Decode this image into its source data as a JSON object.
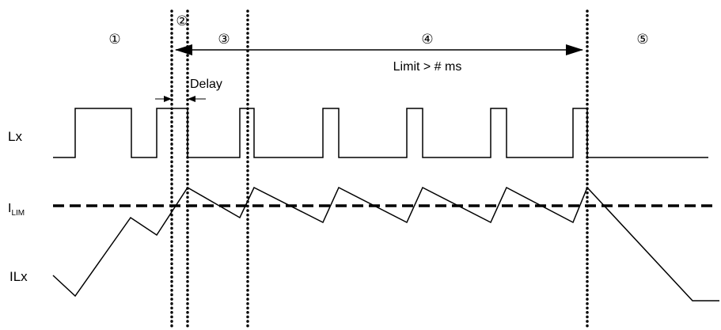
{
  "phase_labels": [
    "①",
    "②",
    "③",
    "④",
    "⑤"
  ],
  "annotations": {
    "limit_text": "Limit > # ms",
    "delay_text": "Delay"
  },
  "signals": {
    "lx_label": "Lx",
    "ilim_label_main": "I",
    "ilim_label_sub": "LIM",
    "ilx_label": "ILx"
  },
  "colors": {
    "ink": "#000000",
    "background": "#ffffff"
  }
}
